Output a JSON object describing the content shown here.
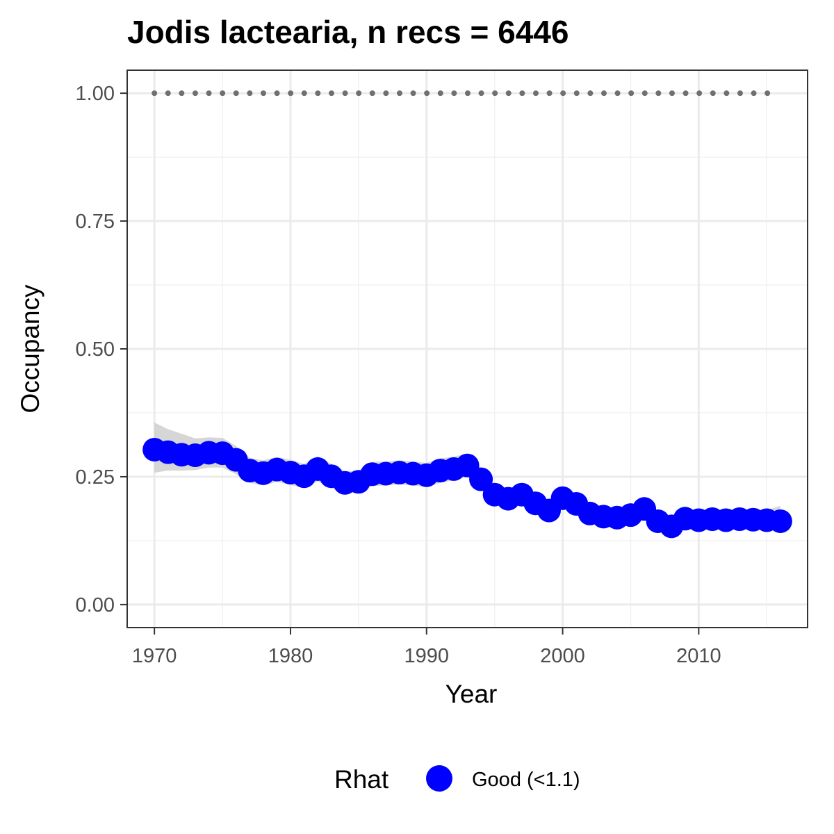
{
  "chart_data": {
    "type": "line",
    "title": "Jodis lactearia, n recs = 6446",
    "xlabel": "Year",
    "ylabel": "Occupancy",
    "xlim": [
      1968,
      2018
    ],
    "ylim": [
      -0.045,
      1.045
    ],
    "x_ticks": [
      1970,
      1980,
      1990,
      2000,
      2010
    ],
    "x_tick_labels": [
      "1970",
      "1980",
      "1990",
      "2000",
      "2010"
    ],
    "y_ticks": [
      0,
      0.25,
      0.5,
      0.75,
      1.0
    ],
    "y_tick_labels": [
      "0.00",
      "0.25",
      "0.50",
      "0.75",
      "1.00"
    ],
    "grid": true,
    "reference_line": {
      "y": 1.0,
      "style": "dotted",
      "color": "#707070"
    },
    "x": [
      1970,
      1971,
      1972,
      1973,
      1974,
      1975,
      1976,
      1977,
      1978,
      1979,
      1980,
      1981,
      1982,
      1983,
      1984,
      1985,
      1986,
      1987,
      1988,
      1989,
      1990,
      1991,
      1992,
      1993,
      1994,
      1995,
      1996,
      1997,
      1998,
      1999,
      2000,
      2001,
      2002,
      2003,
      2004,
      2005,
      2006,
      2007,
      2008,
      2009,
      2010,
      2011,
      2012,
      2013,
      2014,
      2015,
      2016
    ],
    "series": [
      {
        "name": "Good (<1.1)",
        "color": "#0000ff",
        "values": [
          0.303,
          0.298,
          0.293,
          0.292,
          0.297,
          0.296,
          0.283,
          0.262,
          0.257,
          0.264,
          0.258,
          0.251,
          0.265,
          0.251,
          0.238,
          0.24,
          0.255,
          0.256,
          0.258,
          0.256,
          0.253,
          0.262,
          0.265,
          0.272,
          0.245,
          0.215,
          0.207,
          0.215,
          0.198,
          0.184,
          0.208,
          0.197,
          0.178,
          0.172,
          0.17,
          0.175,
          0.187,
          0.163,
          0.153,
          0.168,
          0.165,
          0.167,
          0.165,
          0.167,
          0.166,
          0.165,
          0.163
        ],
        "lower": [
          0.258,
          0.262,
          0.262,
          0.263,
          0.268,
          0.268,
          0.255,
          0.238,
          0.233,
          0.24,
          0.234,
          0.228,
          0.241,
          0.228,
          0.217,
          0.219,
          0.232,
          0.233,
          0.235,
          0.233,
          0.23,
          0.238,
          0.243,
          0.25,
          0.225,
          0.196,
          0.188,
          0.196,
          0.18,
          0.167,
          0.19,
          0.179,
          0.161,
          0.156,
          0.154,
          0.158,
          0.169,
          0.146,
          0.137,
          0.151,
          0.148,
          0.15,
          0.148,
          0.15,
          0.149,
          0.147,
          0.143
        ],
        "upper": [
          0.356,
          0.343,
          0.334,
          0.325,
          0.327,
          0.326,
          0.31,
          0.287,
          0.282,
          0.289,
          0.283,
          0.275,
          0.29,
          0.275,
          0.261,
          0.262,
          0.279,
          0.28,
          0.282,
          0.28,
          0.277,
          0.286,
          0.289,
          0.296,
          0.267,
          0.235,
          0.227,
          0.235,
          0.217,
          0.202,
          0.227,
          0.216,
          0.196,
          0.19,
          0.188,
          0.193,
          0.206,
          0.181,
          0.171,
          0.186,
          0.183,
          0.185,
          0.183,
          0.185,
          0.185,
          0.185,
          0.193
        ]
      }
    ],
    "legend": {
      "title": "Rhat",
      "position": "bottom",
      "entries": [
        "Good (<1.1)"
      ]
    }
  }
}
